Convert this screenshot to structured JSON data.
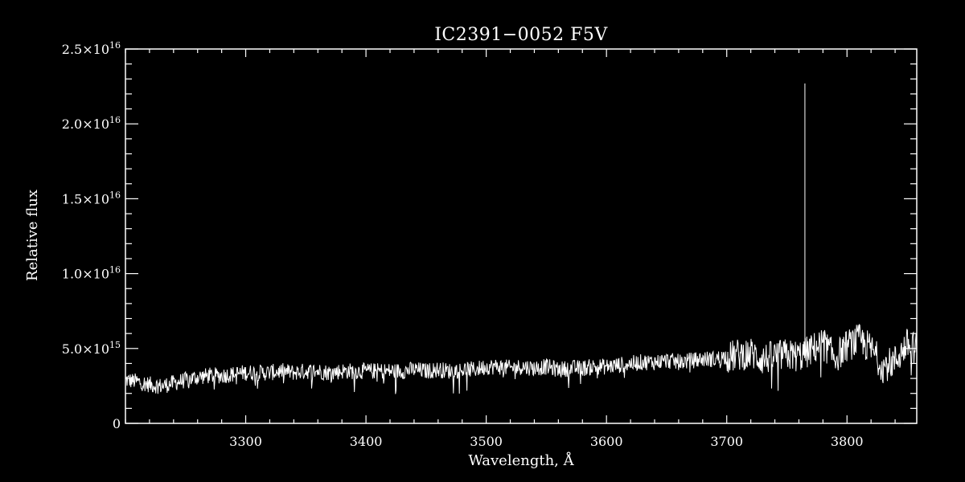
{
  "chart_data": {
    "type": "line",
    "title": "IC2391−0052  F5V",
    "xlabel": "Wavelength, Å",
    "ylabel": "Relative flux",
    "xlim": [
      3200,
      3858
    ],
    "ylim": [
      0,
      2.5e+16
    ],
    "x_ticks": [
      {
        "value": 3300,
        "label": "3300"
      },
      {
        "value": 3400,
        "label": "3400"
      },
      {
        "value": 3500,
        "label": "3500"
      },
      {
        "value": 3600,
        "label": "3600"
      },
      {
        "value": 3700,
        "label": "3700"
      },
      {
        "value": 3800,
        "label": "3800"
      }
    ],
    "x_minor_step": 20,
    "y_ticks": [
      {
        "value": 0,
        "mantissa": "0",
        "exponent": ""
      },
      {
        "value": 5000000000000000.0,
        "mantissa": "5.0×10",
        "exponent": "15"
      },
      {
        "value": 1e+16,
        "mantissa": "1.0×10",
        "exponent": "16"
      },
      {
        "value": 1.5e+16,
        "mantissa": "1.5×10",
        "exponent": "16"
      },
      {
        "value": 2e+16,
        "mantissa": "2.0×10",
        "exponent": "16"
      },
      {
        "value": 2.5e+16,
        "mantissa": "2.5×10",
        "exponent": "16"
      }
    ],
    "y_minor_step": 1000000000000000.0,
    "grid": false,
    "spike": {
      "x": 3765,
      "y": 2.27e+16
    },
    "series": [
      {
        "x": [
          3200,
          3210,
          3220,
          3230,
          3240,
          3250,
          3260,
          3270,
          3280,
          3290,
          3300,
          3310,
          3320,
          3330,
          3340,
          3350,
          3360,
          3370,
          3380,
          3390,
          3400,
          3410,
          3420,
          3430,
          3440,
          3450,
          3460,
          3470,
          3480,
          3490,
          3500,
          3510,
          3520,
          3530,
          3540,
          3550,
          3560,
          3570,
          3580,
          3590,
          3600,
          3610,
          3620,
          3630,
          3640,
          3650,
          3660,
          3670,
          3680,
          3690,
          3700,
          3710,
          3720,
          3730,
          3740,
          3750,
          3760,
          3770,
          3780,
          3790,
          3800,
          3810,
          3820,
          3830,
          3840,
          3850,
          3858
        ],
        "y": [
          3000000000000000.0,
          2900000000000000.0,
          2700000000000000.0,
          2600000000000000.0,
          2800000000000000.0,
          3000000000000000.0,
          3200000000000000.0,
          3300000000000000.0,
          3300000000000000.0,
          3400000000000000.0,
          3500000000000000.0,
          3500000000000000.0,
          3500000000000000.0,
          3600000000000000.0,
          3500000000000000.0,
          3600000000000000.0,
          3600000000000000.0,
          3500000000000000.0,
          3600000000000000.0,
          3600000000000000.0,
          3600000000000000.0,
          3600000000000000.0,
          3600000000000000.0,
          3600000000000000.0,
          3700000000000000.0,
          3600000000000000.0,
          3700000000000000.0,
          3600000000000000.0,
          3700000000000000.0,
          3700000000000000.0,
          3900000000000000.0,
          3900000000000000.0,
          3800000000000000.0,
          3900000000000000.0,
          3800000000000000.0,
          3900000000000000.0,
          3700000000000000.0,
          3800000000000000.0,
          3800000000000000.0,
          3900000000000000.0,
          3900000000000000.0,
          4000000000000000.0,
          4100000000000000.0,
          4200000000000000.0,
          4200000000000000.0,
          4300000000000000.0,
          4200000000000000.0,
          4300000000000000.0,
          4400000000000000.0,
          4400000000000000.0,
          4600000000000000.0,
          4800000000000000.0,
          4900000000000000.0,
          4500000000000000.0,
          4700000000000000.0,
          4800000000000000.0,
          4700000000000000.0,
          5100000000000000.0,
          5600000000000000.0,
          4600000000000000.0,
          5400000000000000.0,
          5800000000000000.0,
          5200000000000000.0,
          4000000000000000.0,
          4400000000000000.0,
          5500000000000000.0,
          5200000000000000.0
        ]
      }
    ]
  }
}
